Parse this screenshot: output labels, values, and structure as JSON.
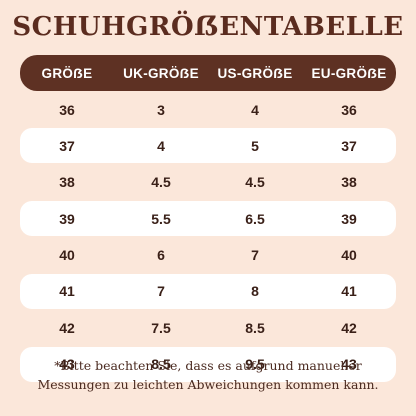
{
  "title": "SCHUHGRÖẞENTABELLE",
  "headers": [
    "GRÖẞE",
    "UK-GRÖẞE",
    "US-GRÖẞE",
    "EU-GRÖẞE"
  ],
  "rows": [
    [
      "36",
      "3",
      "4",
      "36"
    ],
    [
      "37",
      "4",
      "5",
      "37"
    ],
    [
      "38",
      "4.5",
      "4.5",
      "38"
    ],
    [
      "39",
      "5.5",
      "6.5",
      "39"
    ],
    [
      "40",
      "6",
      "7",
      "40"
    ],
    [
      "41",
      "7",
      "8",
      "41"
    ],
    [
      "42",
      "7.5",
      "8.5",
      "42"
    ],
    [
      "43",
      "8.5",
      "9.5",
      "43"
    ]
  ],
  "note_line1": "*Bitte beachten Sie, dass es aufgrund manueller",
  "note_line2": "Messungen zu leichten Abweichungen kommen kann.",
  "colors": {
    "background": "#fbe7da",
    "header": "#5e3123",
    "title": "#5b2c1f",
    "stripe": "#ffffff"
  }
}
